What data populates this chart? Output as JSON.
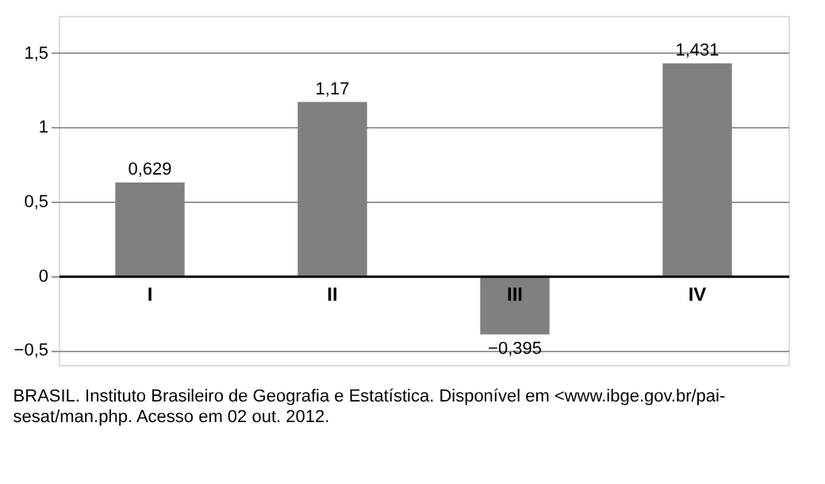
{
  "chart_data": {
    "type": "bar",
    "categories": [
      "I",
      "II",
      "III",
      "IV"
    ],
    "values": [
      0.629,
      1.17,
      -0.395,
      1.431
    ],
    "value_labels": [
      "0,629",
      "1,17",
      "−0,395",
      "1,431"
    ],
    "color": "#808080",
    "ylim": [
      -0.6,
      1.75
    ],
    "yticks": [
      {
        "value": -0.5,
        "label": "−0,5"
      },
      0,
      {
        "value": 0.5,
        "label": "0,5"
      },
      1,
      {
        "value": 1.5,
        "label": "1,5"
      }
    ],
    "grid": "y",
    "annotations": [
      "BRASIL. Instituto Brasileiro de Geografia e Estatística. Disponível em <www.ibge.gov.br/pai-sesat/man.php. Acesso em 02 out. 2012."
    ]
  }
}
